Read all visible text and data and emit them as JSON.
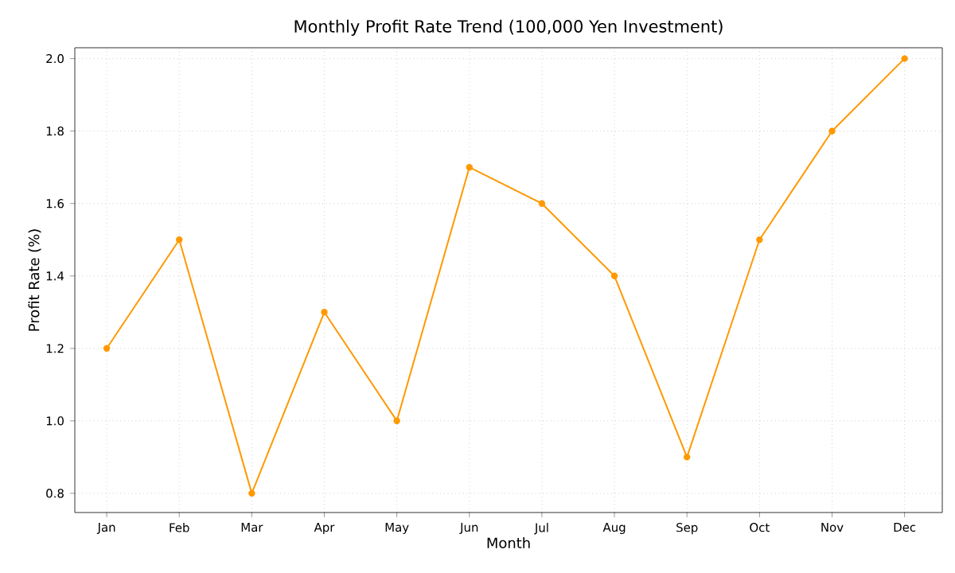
{
  "chart_data": {
    "type": "line",
    "title": "Monthly Profit Rate Trend (100,000 Yen Investment)",
    "xlabel": "Month",
    "ylabel": "Profit Rate (%)",
    "categories": [
      "Jan",
      "Feb",
      "Mar",
      "Apr",
      "May",
      "Jun",
      "Jul",
      "Aug",
      "Sep",
      "Oct",
      "Nov",
      "Dec"
    ],
    "values": [
      1.2,
      1.5,
      0.8,
      1.3,
      1.0,
      1.7,
      1.6,
      1.4,
      0.9,
      1.5,
      1.8,
      2.0
    ],
    "color": "#ff9900",
    "marker": "circle",
    "line_style": "solid",
    "grid": true,
    "ylim": [
      0.747,
      2.03
    ],
    "yticks": [
      {
        "value": 0.8,
        "label": "0.8"
      },
      {
        "value": 1.0,
        "label": "1.0"
      },
      {
        "value": 1.2,
        "label": "1.2"
      },
      {
        "value": 1.4,
        "label": "1.4"
      },
      {
        "value": 1.6,
        "label": "1.6"
      },
      {
        "value": 1.8,
        "label": "1.8"
      },
      {
        "value": 2.0,
        "label": "2.0"
      }
    ]
  }
}
